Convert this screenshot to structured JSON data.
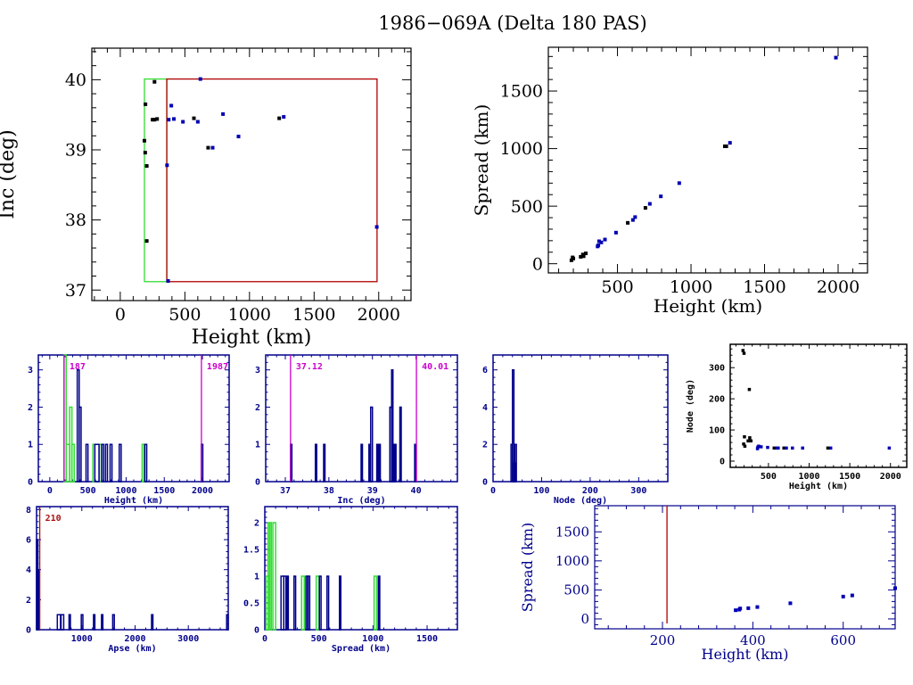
{
  "title": "1986−069A (Delta 180 PAS)",
  "colors": {
    "black": "#000000",
    "blue": "#0000b4",
    "navy": "#00008b",
    "green": "#33dd33",
    "red": "#b00000",
    "magenta": "#cc00cc",
    "dark_red": "#aa1111"
  },
  "chart_data": [
    {
      "id": "inc-vs-height",
      "type": "scatter",
      "title": "",
      "xlabel": "Height (km)",
      "ylabel": "Inc (deg)",
      "xlim": [
        -220,
        2250
      ],
      "ylim": [
        36.85,
        40.45
      ],
      "xticks": [
        0,
        500,
        1000,
        1500,
        2000
      ],
      "yticks": [
        37,
        38,
        39,
        40
      ],
      "style": "large-black",
      "boxes": [
        {
          "name": "green-box",
          "color": "green",
          "x": [
            187,
            360
          ],
          "y": [
            37.12,
            40.01
          ]
        },
        {
          "name": "red-box",
          "color": "red",
          "x": [
            360,
            1987
          ],
          "y": [
            37.12,
            40.01
          ]
        }
      ],
      "series": [
        {
          "name": "black",
          "color": "black",
          "points": [
            [
              187,
              39.13
            ],
            [
              195,
              39.65
            ],
            [
              193,
              38.96
            ],
            [
              205,
              38.77
            ],
            [
              205,
              37.7
            ],
            [
              265,
              39.97
            ],
            [
              250,
              39.43
            ],
            [
              265,
              39.43
            ],
            [
              285,
              39.44
            ],
            [
              570,
              39.45
            ],
            [
              680,
              39.03
            ],
            [
              1230,
              39.45
            ]
          ]
        },
        {
          "name": "blue",
          "color": "blue",
          "points": [
            [
              375,
              39.43
            ],
            [
              395,
              39.63
            ],
            [
              415,
              39.44
            ],
            [
              485,
              39.4
            ],
            [
              600,
              39.4
            ],
            [
              620,
              40.01
            ],
            [
              715,
              39.03
            ],
            [
              795,
              39.51
            ],
            [
              915,
              39.19
            ],
            [
              1265,
              39.47
            ],
            [
              1985,
              37.9
            ],
            [
              362,
              38.78
            ],
            [
              370,
              37.13
            ]
          ]
        }
      ]
    },
    {
      "id": "spread-vs-height",
      "type": "scatter",
      "xlabel": "Height (km)",
      "ylabel": "Spread (km)",
      "xlim": [
        30,
        2200
      ],
      "ylim": [
        -80,
        1880
      ],
      "xticks": [
        500,
        1000,
        1500,
        2000
      ],
      "yticks": [
        0,
        500,
        1000,
        1500
      ],
      "style": "large-black",
      "series": [
        {
          "name": "black",
          "color": "black",
          "points": [
            [
              187,
              30
            ],
            [
              195,
              55
            ],
            [
              200,
              45
            ],
            [
              250,
              60
            ],
            [
              265,
              80
            ],
            [
              270,
              65
            ],
            [
              285,
              90
            ],
            [
              570,
              355
            ],
            [
              690,
              485
            ],
            [
              1230,
              1020
            ],
            [
              1240,
              1020
            ]
          ]
        },
        {
          "name": "blue",
          "color": "blue",
          "points": [
            [
              365,
              150
            ],
            [
              370,
              160
            ],
            [
              375,
              195
            ],
            [
              390,
              185
            ],
            [
              415,
              210
            ],
            [
              490,
              270
            ],
            [
              605,
              380
            ],
            [
              620,
              405
            ],
            [
              720,
              520
            ],
            [
              795,
              585
            ],
            [
              920,
              700
            ],
            [
              1265,
              1050
            ],
            [
              1985,
              1790
            ]
          ]
        }
      ]
    },
    {
      "id": "height-histogram",
      "type": "bar",
      "xlabel": "Height (km)",
      "ylabel": "",
      "xlim": [
        -150,
        2350
      ],
      "ylim": [
        0,
        3.4
      ],
      "xticks": [
        0,
        500,
        1000,
        1500,
        2000
      ],
      "yticks": [
        0,
        1,
        2,
        3
      ],
      "style": "small",
      "markers": [
        {
          "label": "187",
          "value": 187,
          "color": "magenta",
          "label_side": "right"
        },
        {
          "label": "1987",
          "value": 1987,
          "color": "magenta",
          "label_side": "right"
        }
      ],
      "series": [
        {
          "name": "green",
          "color": "green",
          "bins": [
            [
              187,
              215,
              3.4
            ],
            [
              215,
              260,
              1
            ],
            [
              260,
              290,
              2
            ],
            [
              290,
              320,
              1
            ],
            [
              565,
              590,
              1
            ],
            [
              650,
              680,
              1
            ],
            [
              1210,
              1235,
              1
            ]
          ]
        },
        {
          "name": "navy",
          "color": "navy",
          "bins": [
            [
              360,
              385,
              3
            ],
            [
              385,
              410,
              2
            ],
            [
              475,
              500,
              1
            ],
            [
              590,
              645,
              1
            ],
            [
              680,
              705,
              1
            ],
            [
              730,
              755,
              1
            ],
            [
              790,
              815,
              1
            ],
            [
              910,
              935,
              1
            ],
            [
              1245,
              1270,
              1
            ],
            [
              1985,
              2005,
              1
            ]
          ]
        }
      ]
    },
    {
      "id": "inc-histogram",
      "type": "bar",
      "xlabel": "Inc (deg)",
      "ylabel": "",
      "xlim": [
        36.55,
        40.95
      ],
      "ylim": [
        0,
        3.4
      ],
      "xticks": [
        37,
        38,
        39,
        40
      ],
      "yticks": [
        0,
        1,
        2,
        3
      ],
      "style": "small",
      "markers": [
        {
          "label": "37.12",
          "value": 37.12,
          "color": "magenta",
          "label_side": "right"
        },
        {
          "label": "40.01",
          "value": 40.01,
          "color": "magenta",
          "label_side": "right"
        }
      ],
      "series": [
        {
          "name": "navy",
          "color": "navy",
          "bins": [
            [
              37.12,
              37.14,
              1
            ],
            [
              37.69,
              37.72,
              1
            ],
            [
              37.88,
              37.91,
              1
            ],
            [
              38.74,
              38.77,
              1
            ],
            [
              38.92,
              38.95,
              1
            ],
            [
              38.96,
              39.0,
              2
            ],
            [
              39.1,
              39.13,
              1
            ],
            [
              39.15,
              39.18,
              1
            ],
            [
              39.4,
              39.44,
              2
            ],
            [
              39.44,
              39.46,
              3
            ],
            [
              39.47,
              39.5,
              1
            ],
            [
              39.51,
              39.54,
              1
            ],
            [
              39.63,
              39.66,
              2
            ],
            [
              39.97,
              40.0,
              1
            ]
          ]
        }
      ]
    },
    {
      "id": "node-histogram",
      "type": "bar",
      "xlabel": "Node (deg)",
      "ylabel": "",
      "xlim": [
        0,
        360
      ],
      "ylim": [
        0,
        6.8
      ],
      "xticks": [
        0,
        100,
        200,
        300
      ],
      "yticks": [
        0,
        2,
        4,
        6
      ],
      "style": "small",
      "series": [
        {
          "name": "navy",
          "color": "navy",
          "bins": [
            [
              37,
              40,
              2
            ],
            [
              40,
              43,
              6
            ],
            [
              43,
              45,
              1
            ],
            [
              45,
              48,
              2
            ]
          ]
        }
      ]
    },
    {
      "id": "node-vs-height",
      "type": "scatter",
      "xlabel": "Height (km)",
      "ylabel": "Node (deg)",
      "xlim": [
        30,
        2200
      ],
      "ylim": [
        -20,
        375
      ],
      "xticks": [
        500,
        1000,
        1500,
        2000
      ],
      "yticks": [
        0,
        100,
        200,
        300
      ],
      "style": "small",
      "series": [
        {
          "name": "black",
          "color": "black",
          "points": [
            [
              187,
              355
            ],
            [
              200,
              346
            ],
            [
              195,
              55
            ],
            [
              210,
              48
            ],
            [
              205,
              78
            ],
            [
              250,
              65
            ],
            [
              265,
              230
            ],
            [
              270,
              75
            ],
            [
              285,
              65
            ],
            [
              570,
              42
            ],
            [
              690,
              42
            ],
            [
              1230,
              42
            ]
          ]
        },
        {
          "name": "blue",
          "color": "blue",
          "points": [
            [
              365,
              40
            ],
            [
              370,
              45
            ],
            [
              380,
              48
            ],
            [
              410,
              46
            ],
            [
              490,
              44
            ],
            [
              605,
              42
            ],
            [
              620,
              42
            ],
            [
              720,
              42
            ],
            [
              795,
              42
            ],
            [
              920,
              42
            ],
            [
              1265,
              42
            ],
            [
              1985,
              42
            ]
          ]
        }
      ]
    },
    {
      "id": "apse-histogram",
      "type": "bar",
      "xlabel": "Apse (km)",
      "ylabel": "",
      "xlim": [
        150,
        3750
      ],
      "ylim": [
        0,
        8.2
      ],
      "xticks": [
        1000,
        2000,
        3000
      ],
      "yticks": [
        0,
        2,
        4,
        6,
        8
      ],
      "style": "small",
      "markers": [
        {
          "label": "210",
          "value": 210,
          "color": "dark_red",
          "label_side": "right"
        }
      ],
      "series": [
        {
          "name": "navy",
          "color": "navy",
          "bins": [
            [
              150,
              175,
              6
            ],
            [
              175,
              200,
              4
            ],
            [
              540,
              600,
              1
            ],
            [
              610,
              660,
              1
            ],
            [
              760,
              780,
              1
            ],
            [
              990,
              1020,
              1
            ],
            [
              1220,
              1240,
              1
            ],
            [
              1370,
              1390,
              1
            ],
            [
              1580,
              1610,
              1
            ],
            [
              2310,
              2330,
              1
            ],
            [
              3720,
              3750,
              1
            ]
          ]
        }
      ]
    },
    {
      "id": "spread-histogram",
      "type": "bar",
      "xlabel": "Spread (km)",
      "ylabel": "",
      "xlim": [
        0,
        1780
      ],
      "ylim": [
        0,
        2.3
      ],
      "xticks": [
        0,
        500,
        1000,
        1500
      ],
      "yticks": [
        0,
        0.5,
        1,
        1.5,
        2
      ],
      "ytick_labels": [
        "0",
        "0.5",
        "1",
        "1.5",
        "2"
      ],
      "style": "small",
      "series": [
        {
          "name": "green",
          "color": "green",
          "bins": [
            [
              30,
              45,
              2
            ],
            [
              45,
              60,
              2
            ],
            [
              75,
              100,
              2
            ],
            [
              10,
              30,
              1
            ],
            [
              340,
              365,
              1
            ],
            [
              475,
              500,
              1
            ],
            [
              1010,
              1035,
              1
            ]
          ]
        },
        {
          "name": "navy",
          "color": "navy",
          "bins": [
            [
              150,
              175,
              1
            ],
            [
              175,
              195,
              1
            ],
            [
              205,
              215,
              1
            ],
            [
              270,
              285,
              1
            ],
            [
              380,
              395,
              1
            ],
            [
              400,
              415,
              1
            ],
            [
              505,
              520,
              1
            ],
            [
              575,
              590,
              1
            ],
            [
              690,
              700,
              1
            ],
            [
              1050,
              1060,
              1
            ]
          ]
        }
      ]
    },
    {
      "id": "spread-vs-height-zoom",
      "type": "scatter",
      "xlabel": "Height (km)",
      "ylabel": "Spread (km)",
      "xlim": [
        50,
        715
      ],
      "ylim": [
        -170,
        1950
      ],
      "xticks": [
        200,
        400,
        600
      ],
      "yticks": [
        0,
        500,
        1000,
        1500
      ],
      "style": "medium-navy",
      "markers": [
        {
          "label": "",
          "value": 210,
          "color": "red",
          "label_side": "none"
        }
      ],
      "series": [
        {
          "name": "blue",
          "color": "blue",
          "points": [
            [
              362,
              150
            ],
            [
              370,
              160
            ],
            [
              372,
              180
            ],
            [
              390,
              185
            ],
            [
              410,
              205
            ],
            [
              483,
              270
            ],
            [
              600,
              385
            ],
            [
              620,
              405
            ],
            [
              715,
              530
            ]
          ]
        }
      ]
    }
  ]
}
